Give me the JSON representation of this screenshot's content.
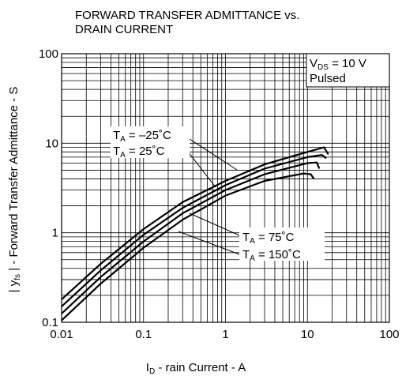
{
  "chart_data": {
    "type": "line",
    "title_lines": [
      "FORWARD TRANSFER ADMITTANCE vs.",
      "DRAIN CURRENT"
    ],
    "x_label": {
      "main": "I",
      "sub": "D",
      "rest": " - rain Current - A"
    },
    "y_label": {
      "main": "| y",
      "sub": "fs",
      "rest": " | - Forward Transfer Admittance - S"
    },
    "log_x": true,
    "log_y": true,
    "grid": true,
    "color": "#000000",
    "xlim": [
      0.01,
      100
    ],
    "xticks": [
      0.01,
      0.1,
      1,
      10,
      100
    ],
    "ylim": [
      0.1,
      100
    ],
    "yticks": [
      0.1,
      1,
      10,
      100
    ],
    "condition": [
      {
        "main": "V",
        "sub": "DS",
        "rest": " = 10 V"
      },
      {
        "main": "Pulsed"
      }
    ],
    "annotations": [
      {
        "main": "T",
        "sub": "A",
        "rest": " = –25˚C"
      },
      {
        "main": "T",
        "sub": "A",
        "rest": " = 25˚C"
      },
      {
        "main": "T",
        "sub": "A",
        "rest": " = 75˚C"
      },
      {
        "main": "T",
        "sub": "A",
        "rest": " = 150˚C"
      }
    ],
    "series": [
      {
        "x": [
          0.01,
          0.03,
          0.1,
          0.3,
          1,
          3,
          10,
          16,
          18
        ],
        "values": [
          0.18,
          0.45,
          1.1,
          2.2,
          3.8,
          5.8,
          8,
          9,
          7.5
        ]
      },
      {
        "x": [
          0.01,
          0.03,
          0.1,
          0.3,
          1,
          3,
          10,
          15,
          17
        ],
        "values": [
          0.15,
          0.38,
          0.95,
          1.9,
          3.4,
          5.2,
          7,
          7.4,
          6.8
        ]
      },
      {
        "x": [
          0.01,
          0.03,
          0.1,
          0.3,
          1,
          3,
          10,
          13,
          14
        ],
        "values": [
          0.125,
          0.32,
          0.8,
          1.65,
          3,
          4.5,
          6,
          6.1,
          5.2
        ]
      },
      {
        "x": [
          0.01,
          0.03,
          0.1,
          0.3,
          1,
          3,
          9,
          11,
          12
        ],
        "values": [
          0.105,
          0.27,
          0.68,
          1.4,
          2.6,
          3.8,
          4.6,
          4.5,
          4
        ]
      }
    ]
  }
}
